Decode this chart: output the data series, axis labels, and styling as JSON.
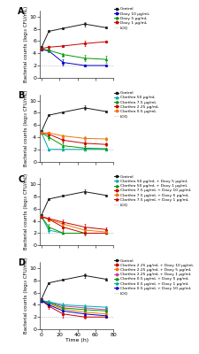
{
  "time_points": [
    0,
    8,
    24,
    48,
    72
  ],
  "panel_A": {
    "label": "A",
    "series": [
      {
        "label": "Control",
        "color": "#1a1a1a",
        "marker": "s",
        "linestyle": "-",
        "y": [
          5.0,
          7.6,
          8.1,
          8.8,
          8.2
        ],
        "yerr": [
          0.15,
          0.15,
          0.15,
          0.35,
          0.15
        ]
      },
      {
        "label": "Doxy 10 µg/mL",
        "color": "#0000cc",
        "marker": "o",
        "linestyle": "-",
        "y": [
          4.6,
          4.4,
          2.5,
          2.0,
          2.0
        ],
        "yerr": [
          0.15,
          0.2,
          0.5,
          0.05,
          0.05
        ]
      },
      {
        "label": "Doxy 5 µg/mL",
        "color": "#009900",
        "marker": "^",
        "linestyle": "-",
        "y": [
          4.7,
          4.5,
          3.8,
          3.2,
          3.0
        ],
        "yerr": [
          0.15,
          0.2,
          0.3,
          0.5,
          0.6
        ]
      },
      {
        "label": "Doxy 1 µg/mL",
        "color": "#cc0000",
        "marker": "o",
        "linestyle": "-",
        "y": [
          4.8,
          5.0,
          5.2,
          5.6,
          5.9
        ],
        "yerr": [
          0.15,
          0.2,
          0.2,
          0.4,
          0.15
        ]
      }
    ],
    "loq": 2.0,
    "ylim": [
      0,
      11
    ],
    "yticks": [
      0,
      2,
      4,
      6,
      8,
      10
    ]
  },
  "panel_B": {
    "label": "B",
    "series": [
      {
        "label": "Control",
        "color": "#1a1a1a",
        "marker": "s",
        "linestyle": "-",
        "y": [
          5.0,
          7.6,
          8.1,
          8.8,
          8.2
        ],
        "yerr": [
          0.15,
          0.15,
          0.15,
          0.35,
          0.15
        ]
      },
      {
        "label": "Clarthro 50 µg/mL",
        "color": "#00aaaa",
        "marker": "^",
        "linestyle": "-",
        "y": [
          4.7,
          2.0,
          2.0,
          2.0,
          2.0
        ],
        "yerr": [
          0.15,
          0.1,
          0.05,
          0.05,
          0.05
        ]
      },
      {
        "label": "Clarthro 7.5 µg/mL",
        "color": "#009900",
        "marker": "^",
        "linestyle": "-",
        "y": [
          4.7,
          4.0,
          2.6,
          2.2,
          2.1
        ],
        "yerr": [
          0.15,
          0.4,
          0.5,
          0.3,
          0.2
        ]
      },
      {
        "label": "Clarthro 2.25 µg/mL",
        "color": "#cc0000",
        "marker": "o",
        "linestyle": "-",
        "y": [
          4.7,
          4.5,
          3.5,
          3.0,
          2.8
        ],
        "yerr": [
          0.15,
          0.3,
          0.4,
          0.4,
          0.3
        ]
      },
      {
        "label": "Clarthro 0.5 µg/mL",
        "color": "#ee7700",
        "marker": "o",
        "linestyle": "-",
        "y": [
          4.7,
          4.7,
          4.2,
          3.8,
          3.7
        ],
        "yerr": [
          0.15,
          0.2,
          0.3,
          0.3,
          0.3
        ]
      }
    ],
    "loq": 2.0,
    "ylim": [
      0,
      11
    ],
    "yticks": [
      0,
      2,
      4,
      6,
      8,
      10
    ]
  },
  "panel_C": {
    "label": "C",
    "series": [
      {
        "label": "Control",
        "color": "#1a1a1a",
        "marker": "s",
        "linestyle": "-",
        "y": [
          5.0,
          7.6,
          8.1,
          8.8,
          8.2
        ],
        "yerr": [
          0.15,
          0.15,
          0.15,
          0.35,
          0.15
        ]
      },
      {
        "label": "Clarthro 50 µg/mL + Doxy 5 µg/mL",
        "color": "#00aaaa",
        "marker": "^",
        "linestyle": "-",
        "y": [
          4.7,
          2.5,
          2.0,
          2.0,
          2.0
        ],
        "yerr": [
          0.15,
          0.5,
          0.05,
          0.05,
          0.05
        ]
      },
      {
        "label": "Clarthro 50 µg/mL + Doxy 1 µg/mL",
        "color": "#009900",
        "marker": "^",
        "linestyle": "-",
        "y": [
          4.7,
          3.0,
          2.0,
          2.0,
          2.0
        ],
        "yerr": [
          0.15,
          0.5,
          0.05,
          0.05,
          0.05
        ]
      },
      {
        "label": "Clarthro 7.5 µg/mL + Doxy 10 µg/mL",
        "color": "#cc0000",
        "marker": "o",
        "linestyle": "-",
        "y": [
          4.7,
          4.3,
          3.0,
          2.0,
          2.0
        ],
        "yerr": [
          0.15,
          0.3,
          0.6,
          0.3,
          0.1
        ]
      },
      {
        "label": "Clarthro 7.5 µg/mL + Doxy 5 µg/mL",
        "color": "#ee7700",
        "marker": "o",
        "linestyle": "-",
        "y": [
          4.7,
          4.3,
          3.5,
          2.5,
          2.2
        ],
        "yerr": [
          0.15,
          0.3,
          0.4,
          0.4,
          0.2
        ]
      },
      {
        "label": "Clarthro 7.5 µg/mL + Doxy 1 µg/mL",
        "color": "#cc0000",
        "marker": "^",
        "linestyle": "-",
        "y": [
          4.7,
          4.4,
          3.8,
          3.0,
          2.6
        ],
        "yerr": [
          0.15,
          0.3,
          0.4,
          0.5,
          0.3
        ]
      }
    ],
    "loq": 2.0,
    "ylim": [
      0,
      11
    ],
    "yticks": [
      0,
      2,
      4,
      6,
      8,
      10
    ]
  },
  "panel_D": {
    "label": "D",
    "series": [
      {
        "label": "Control",
        "color": "#1a1a1a",
        "marker": "s",
        "linestyle": "-",
        "y": [
          5.0,
          7.6,
          8.1,
          8.8,
          8.2
        ],
        "yerr": [
          0.15,
          0.15,
          0.15,
          0.35,
          0.15
        ]
      },
      {
        "label": "Clarthro 2.25 µg/mL + Doxy 10 µg/mL",
        "color": "#cc0000",
        "marker": "o",
        "linestyle": "-",
        "y": [
          4.7,
          3.8,
          2.5,
          2.0,
          2.0
        ],
        "yerr": [
          0.15,
          0.5,
          0.6,
          0.2,
          0.1
        ]
      },
      {
        "label": "Clarthro 2.25 µg/mL + Doxy 5 µg/mL",
        "color": "#ee7700",
        "marker": "o",
        "linestyle": "-",
        "y": [
          4.7,
          4.2,
          3.3,
          2.8,
          2.5
        ],
        "yerr": [
          0.15,
          0.3,
          0.4,
          0.4,
          0.3
        ]
      },
      {
        "label": "Clarthro 2.25 µg/mL + Doxy 1 µg/mL",
        "color": "#cc44aa",
        "marker": "o",
        "linestyle": "-",
        "y": [
          4.7,
          4.4,
          3.8,
          3.5,
          3.2
        ],
        "yerr": [
          0.15,
          0.3,
          0.3,
          0.3,
          0.3
        ]
      },
      {
        "label": "Clarthro 0.5 µg/mL + Doxy 5 µg/mL",
        "color": "#009900",
        "marker": "^",
        "linestyle": "-",
        "y": [
          4.7,
          4.4,
          3.5,
          3.2,
          3.0
        ],
        "yerr": [
          0.15,
          0.3,
          0.4,
          0.4,
          0.3
        ]
      },
      {
        "label": "Clarthro 0.5 µg/mL + Doxy 1 µg/mL",
        "color": "#00aaaa",
        "marker": "^",
        "linestyle": "-",
        "y": [
          4.7,
          4.5,
          4.0,
          3.8,
          3.6
        ],
        "yerr": [
          0.15,
          0.3,
          0.3,
          0.3,
          0.2
        ]
      },
      {
        "label": "Clarthro 0.5 µg/mL + Doxy 10 µg/mL",
        "color": "#0000cc",
        "marker": "^",
        "linestyle": "-",
        "y": [
          4.7,
          4.0,
          3.0,
          2.5,
          2.2
        ],
        "yerr": [
          0.15,
          0.4,
          0.6,
          0.5,
          0.3
        ]
      }
    ],
    "loq": 2.0,
    "ylim": [
      0,
      11
    ],
    "yticks": [
      0,
      2,
      4,
      6,
      8,
      10
    ]
  },
  "xlabel": "Time (h)",
  "ylabel": "Bacterial counts (log₁₀ CFU/mL)",
  "loq_color": "#aaaaaa",
  "loq_linestyle": ":",
  "loq_label": "LOQ",
  "background_color": "#ffffff",
  "font_size": 4.5,
  "legend_font_size": 3.2,
  "marker_size": 2.0,
  "linewidth": 0.7,
  "capsize": 1.0,
  "elinewidth": 0.5,
  "time_xlim": [
    -2,
    80
  ],
  "time_xticks": [
    0,
    20,
    40,
    60,
    80
  ]
}
